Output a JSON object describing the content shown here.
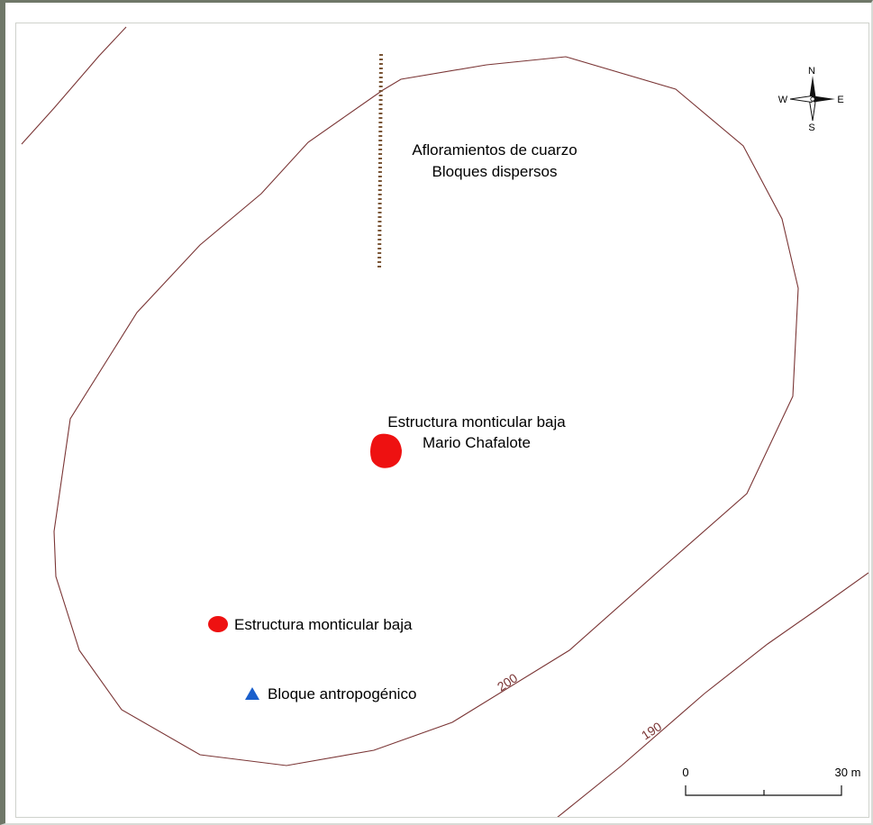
{
  "map": {
    "colors": {
      "contour": "#7a3535",
      "mound": "#ee1111",
      "block": "#1a5fcc",
      "outcrop": "#7a5535"
    },
    "labels": {
      "outcrop_line1": "Afloramientos de cuarzo",
      "outcrop_line2": "Bloques dispersos",
      "main_mound_line1": "Estructura monticular baja",
      "main_mound_line2": "Mario Chafalote",
      "small_mound": "Estructura monticular baja",
      "block": "Bloque antropogénico"
    },
    "contours": [
      {
        "label": "200"
      },
      {
        "label": "190"
      }
    ],
    "compass": {
      "north": "N",
      "south": "S",
      "east": "E",
      "west": "W"
    },
    "scale": {
      "start_label": "0",
      "end_label": "30 m"
    }
  }
}
